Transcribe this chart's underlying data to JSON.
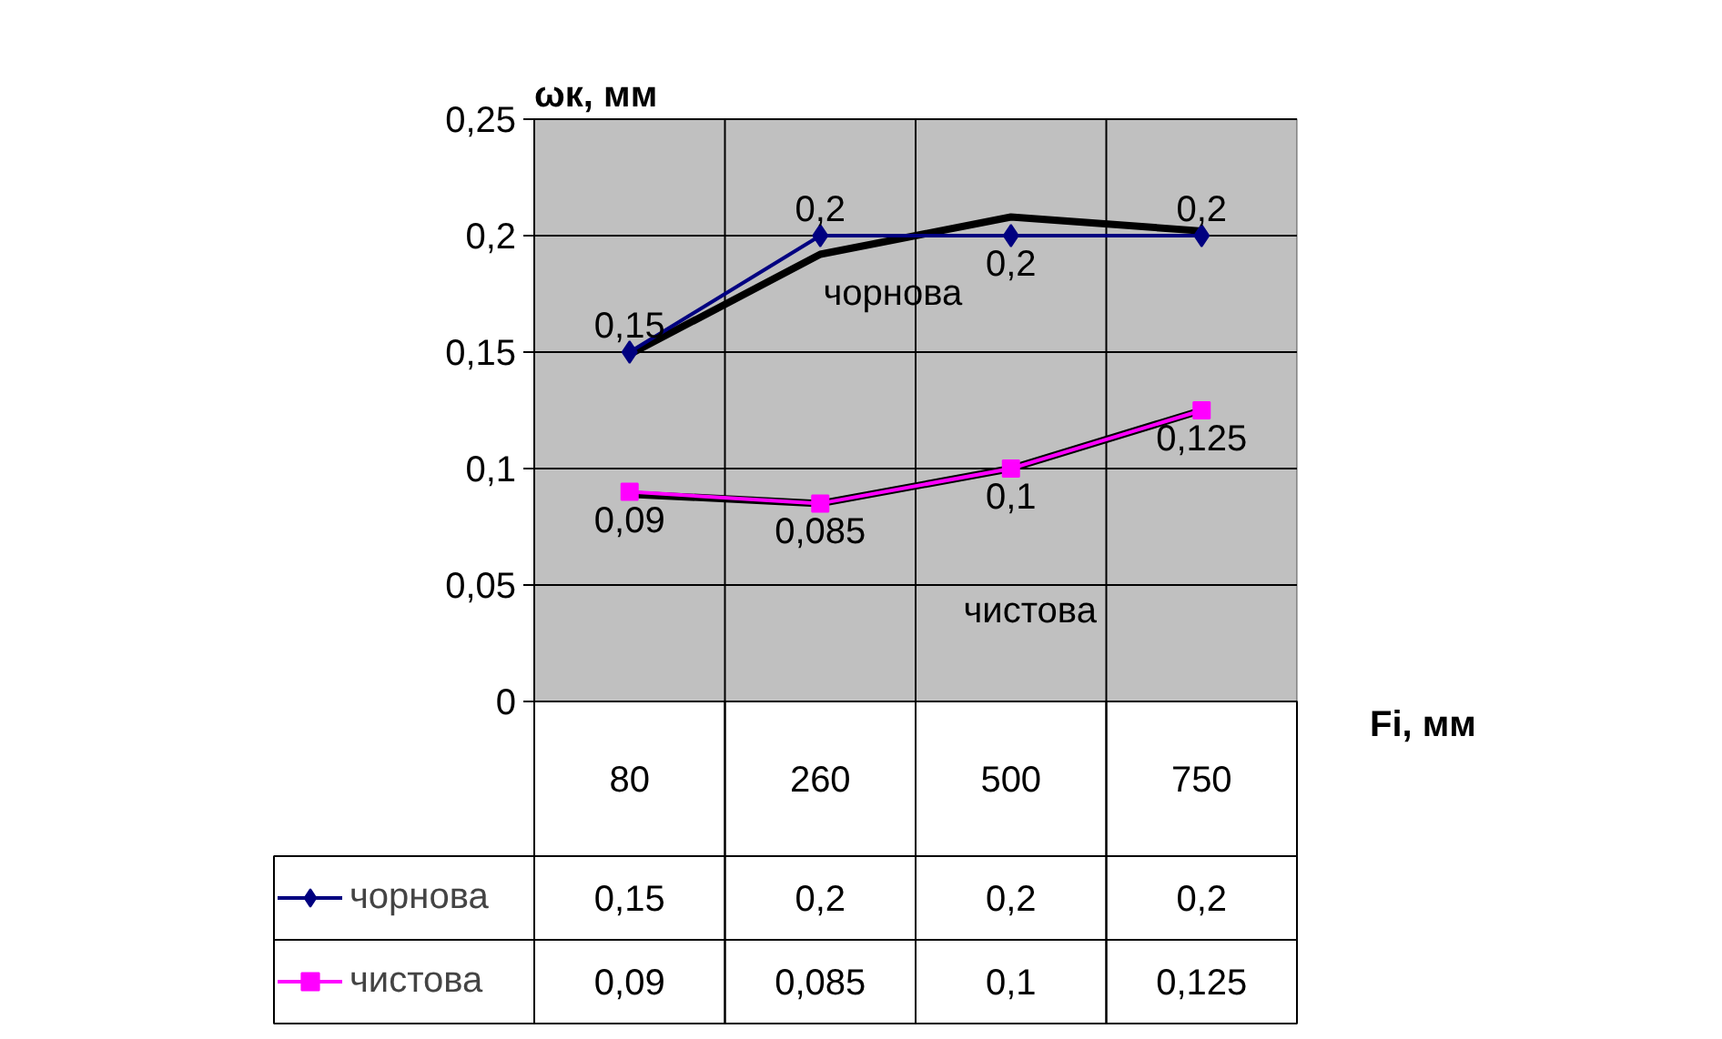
{
  "chart_data": {
    "type": "line",
    "xlabel": "Fi, мм",
    "ylabel": "ωк, мм",
    "categories": [
      "80",
      "260",
      "500",
      "750"
    ],
    "series": [
      {
        "name": "чорнова",
        "color": "#000080",
        "values": [
          0.15,
          0.2,
          0.2,
          0.2
        ],
        "marker": "diamond",
        "value_labels": [
          "0,15",
          "0,2",
          "0,2",
          "0,2"
        ]
      },
      {
        "name": "чистова",
        "color": "#ff00ff",
        "values": [
          0.09,
          0.085,
          0.1,
          0.125
        ],
        "marker": "square",
        "value_labels": [
          "0,09",
          "0,085",
          "0,1",
          "0,125"
        ]
      },
      {
        "color": "#000000",
        "values": [
          0.149,
          0.192,
          0.208,
          0.202
        ],
        "marker": "none"
      },
      {
        "color": "#000000",
        "values": [
          0.089,
          0.085,
          0.1,
          0.125
        ],
        "marker": "none"
      }
    ],
    "annotations": [
      "чорнова",
      "чистова"
    ],
    "ylim": [
      0,
      0.25
    ],
    "yticks": [
      {
        "value": 0,
        "label": "0"
      },
      {
        "value": 0.05,
        "label": "0,05"
      },
      {
        "value": 0.1,
        "label": "0,1"
      },
      {
        "value": 0.15,
        "label": "0,15"
      },
      {
        "value": 0.2,
        "label": "0,2"
      },
      {
        "value": 0.25,
        "label": "0,25"
      }
    ],
    "grid": true,
    "legend": "bottom"
  }
}
